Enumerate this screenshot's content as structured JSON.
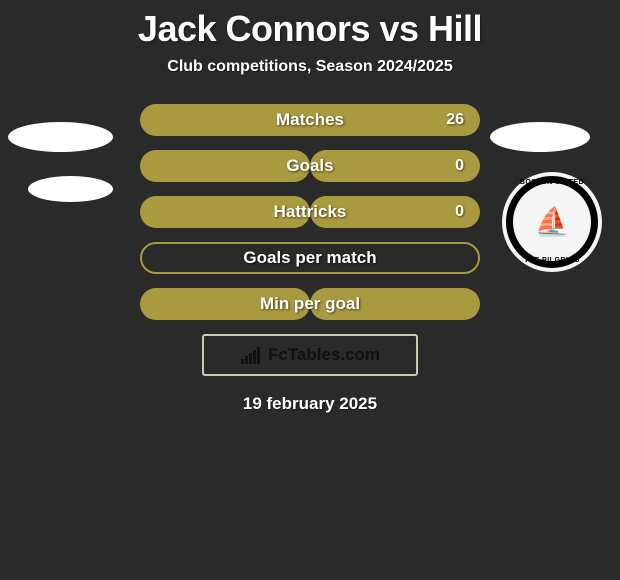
{
  "title": "Jack Connors vs Hill",
  "subtitle": "Club competitions, Season 2024/2025",
  "date": "19 february 2025",
  "brand": "FcTables.com",
  "colors": {
    "bar_fill": "#a99a3f",
    "bar_border": "#a99a3f",
    "background": "#2a2a2a",
    "text": "#ffffff",
    "brand_border": "#ccc9b5"
  },
  "crest": {
    "top_text": "BOSTON UNITED",
    "bottom_text": "THE PILGRIMS",
    "ship_glyph": "⛵"
  },
  "stats": [
    {
      "label": "Matches",
      "value": "26",
      "left_pct": 0,
      "right_pct": 100,
      "show_value": true
    },
    {
      "label": "Goals",
      "value": "0",
      "left_pct": 50,
      "right_pct": 50,
      "show_value": true
    },
    {
      "label": "Hattricks",
      "value": "0",
      "left_pct": 50,
      "right_pct": 50,
      "show_value": true
    },
    {
      "label": "Goals per match",
      "value": "",
      "left_pct": null,
      "right_pct": null,
      "show_value": false
    },
    {
      "label": "Min per goal",
      "value": "",
      "left_pct": 50,
      "right_pct": 50,
      "show_value": false
    }
  ]
}
